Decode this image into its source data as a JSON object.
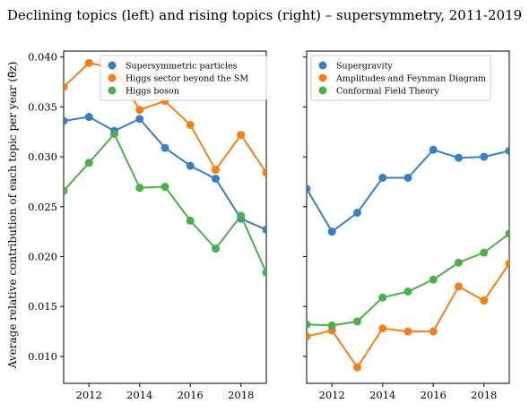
{
  "title": "Declining topics (left) and rising topics (right) – supersymmetry, 2011-2019",
  "ylabel": "Average relative contribution of each topic per year (θ̄z)",
  "chart_data": [
    {
      "type": "line",
      "panel": "left",
      "x": [
        2011,
        2012,
        2013,
        2014,
        2015,
        2016,
        2017,
        2018,
        2019
      ],
      "xlim": [
        2011,
        2019
      ],
      "ylim": [
        0.0073,
        0.0406
      ],
      "xticks": [
        "2012",
        "2014",
        "2016",
        "2018"
      ],
      "yticks": [
        "0.010",
        "0.015",
        "0.020",
        "0.025",
        "0.030",
        "0.035",
        "0.040"
      ],
      "legend_position": "top-right",
      "grid": false,
      "series": [
        {
          "name": "Supersymmetric particles",
          "color": "#3a7fc0",
          "values": [
            0.0336,
            0.034,
            0.0326,
            0.0338,
            0.0309,
            0.0291,
            0.0278,
            0.0238,
            0.0227
          ]
        },
        {
          "name": "Higgs sector beyond the SM",
          "color": "#f57f17",
          "values": [
            0.037,
            0.0394,
            0.0389,
            0.0347,
            0.0356,
            0.0332,
            0.0287,
            0.0322,
            0.0284
          ]
        },
        {
          "name": "Higgs boson",
          "color": "#4caf4c",
          "values": [
            0.0266,
            0.0294,
            0.0323,
            0.0269,
            0.027,
            0.0236,
            0.0208,
            0.0241,
            0.0184
          ]
        }
      ]
    },
    {
      "type": "line",
      "panel": "right",
      "x": [
        2011,
        2012,
        2013,
        2014,
        2015,
        2016,
        2017,
        2018,
        2019
      ],
      "xlim": [
        2011,
        2019
      ],
      "ylim": [
        0.0073,
        0.0406
      ],
      "xticks": [
        "2012",
        "2014",
        "2016",
        "2018"
      ],
      "legend_position": "top-left",
      "grid": false,
      "series": [
        {
          "name": "Supergravity",
          "color": "#3a7fc0",
          "values": [
            0.0268,
            0.0225,
            0.0244,
            0.0279,
            0.0279,
            0.0307,
            0.0299,
            0.03,
            0.0306
          ]
        },
        {
          "name": "Amplitudes and Feynman Diagram",
          "color": "#f57f17",
          "values": [
            0.012,
            0.0126,
            0.0089,
            0.0128,
            0.0125,
            0.0125,
            0.017,
            0.0156,
            0.0193
          ]
        },
        {
          "name": "Conformal Field Theory",
          "color": "#4caf4c",
          "values": [
            0.0132,
            0.0131,
            0.0135,
            0.0159,
            0.0165,
            0.0177,
            0.0194,
            0.0204,
            0.0223
          ]
        }
      ]
    }
  ]
}
